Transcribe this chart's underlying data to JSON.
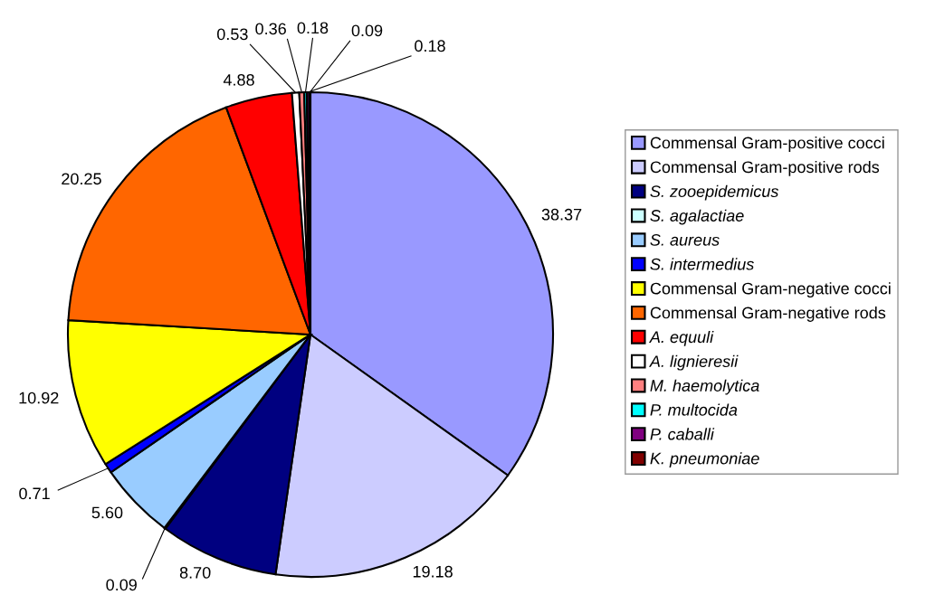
{
  "chart_data": {
    "type": "pie",
    "categories": [
      "Commensal Gram-positive cocci",
      "Commensal Gram-positive rods",
      "S. zooepidemicus",
      "S. agalactiae",
      "S. aureus",
      "S. intermedius",
      "Commensal Gram-negative cocci",
      "Commensal Gram-negative rods",
      "A. equuli",
      "A. lignieresii",
      "M. haemolytica",
      "P. multocida",
      "P. caballi",
      "K. pneumoniae"
    ],
    "values": [
      38.37,
      19.18,
      8.7,
      0.09,
      5.6,
      0.71,
      10.92,
      20.25,
      4.88,
      0.53,
      0.36,
      0.18,
      0.18,
      0.09
    ],
    "colors": [
      "#9999ff",
      "#ccccff",
      "#000080",
      "#ccffff",
      "#99ccff",
      "#0000ff",
      "#ffff00",
      "#ff6600",
      "#ff0000",
      "#ffffff",
      "#ff8080",
      "#00ffff",
      "#800080",
      "#800000"
    ],
    "value_labels": [
      "38.37",
      "19.18",
      "8.70",
      "0.09",
      "5.60",
      "0.71",
      "10.92",
      "20.25",
      "4.88",
      "0.53",
      "0.36",
      "0.18",
      "0.18",
      "0.09"
    ],
    "legend": "right"
  }
}
